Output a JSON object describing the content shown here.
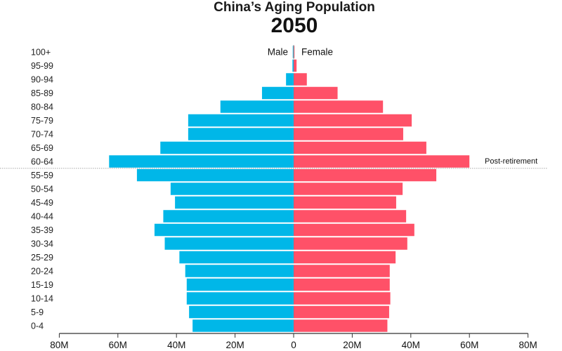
{
  "chart_data": {
    "type": "bar",
    "orientation": "horizontal-pyramid",
    "title": "China’s Aging Population",
    "subtitle": "2050",
    "categories": [
      "100+",
      "95-99",
      "90-94",
      "85-89",
      "80-84",
      "75-79",
      "70-74",
      "65-69",
      "60-64",
      "55-59",
      "50-54",
      "45-49",
      "40-44",
      "35-39",
      "30-34",
      "25-29",
      "20-24",
      "15-19",
      "10-14",
      "5-9",
      "0-4"
    ],
    "series": [
      {
        "name": "Male",
        "color": "#00b7e8",
        "values": [
          0.3,
          0.4,
          2.6,
          10.8,
          25,
          36,
          36,
          45.5,
          63,
          53.5,
          42,
          40.5,
          44.5,
          47.5,
          44,
          39,
          37,
          36.5,
          36.5,
          35.7,
          34.5
        ]
      },
      {
        "name": "Female",
        "color": "#ff5168",
        "values": [
          0.3,
          1,
          4.5,
          15,
          30.5,
          40.3,
          37.4,
          45.3,
          60,
          48.7,
          37.2,
          35,
          38.4,
          41.2,
          38.8,
          34.8,
          32.8,
          32.8,
          33,
          32.6,
          32
        ]
      }
    ],
    "xlim": [
      -80,
      80
    ],
    "xticks": [
      -80,
      -60,
      -40,
      -20,
      0,
      20,
      40,
      60,
      80
    ],
    "xtick_labels": [
      "80M",
      "60M",
      "40M",
      "20M",
      "0",
      "20M",
      "40M",
      "60M",
      "80M"
    ],
    "annotation": {
      "text": "Post-retirement",
      "between": [
        "60-64",
        "55-59"
      ]
    },
    "grid": false
  }
}
